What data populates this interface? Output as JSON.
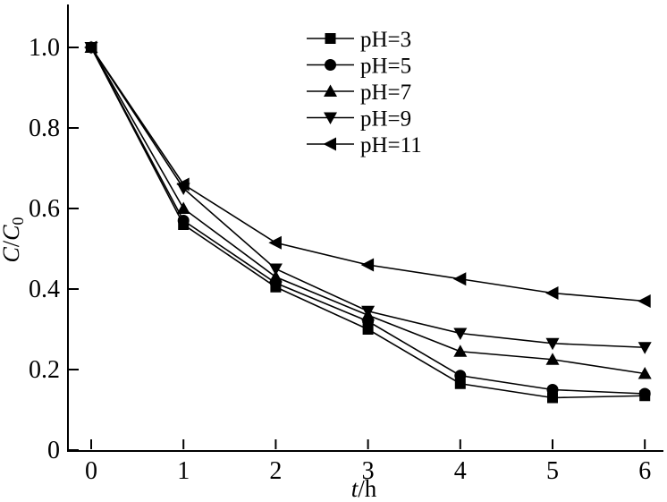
{
  "chart_data": {
    "type": "line",
    "title": "",
    "x": [
      0,
      1,
      2,
      3,
      4,
      5,
      6
    ],
    "series": [
      {
        "name": "pH=3",
        "marker": "square",
        "color": "#000000",
        "values": [
          1.0,
          0.56,
          0.405,
          0.3,
          0.165,
          0.13,
          0.135
        ]
      },
      {
        "name": "pH=5",
        "marker": "circle",
        "color": "#000000",
        "values": [
          1.0,
          0.57,
          0.415,
          0.32,
          0.185,
          0.15,
          0.14
        ]
      },
      {
        "name": "pH=7",
        "marker": "triangle-up",
        "color": "#000000",
        "values": [
          1.0,
          0.6,
          0.43,
          0.335,
          0.245,
          0.225,
          0.19
        ]
      },
      {
        "name": "pH=9",
        "marker": "triangle-down",
        "color": "#000000",
        "values": [
          1.0,
          0.65,
          0.45,
          0.345,
          0.29,
          0.265,
          0.255
        ]
      },
      {
        "name": "pH=11",
        "marker": "triangle-left",
        "color": "#000000",
        "values": [
          1.0,
          0.66,
          0.515,
          0.46,
          0.425,
          0.39,
          0.37
        ]
      }
    ],
    "xlabel": "t/h",
    "ylabel": "C/C0",
    "xlabel_parts": [
      {
        "text": "t",
        "italic": true
      },
      {
        "text": "/h",
        "italic": false
      }
    ],
    "ylabel_parts": [
      {
        "text": "C",
        "italic": true
      },
      {
        "text": "/",
        "italic": false
      },
      {
        "text": "C",
        "italic": true
      },
      {
        "text": "0",
        "italic": false,
        "subscript": true
      }
    ],
    "xlim": [
      -0.35,
      6.25
    ],
    "ylim": [
      0,
      1.12
    ],
    "x_ticks": [
      "0",
      "1",
      "2",
      "3",
      "4",
      "5",
      "6"
    ],
    "y_ticks": [
      {
        "value": 0.0,
        "label": "0"
      },
      {
        "value": 0.2,
        "label": "0.2"
      },
      {
        "value": 0.4,
        "label": "0.4"
      },
      {
        "value": 0.6,
        "label": "0.6"
      },
      {
        "value": 0.8,
        "label": "0.8"
      },
      {
        "value": 1.0,
        "label": "1.0"
      }
    ],
    "grid": false,
    "legend_position": "top-center-inside",
    "axis_color": "#000000",
    "background": "#ffffff"
  }
}
